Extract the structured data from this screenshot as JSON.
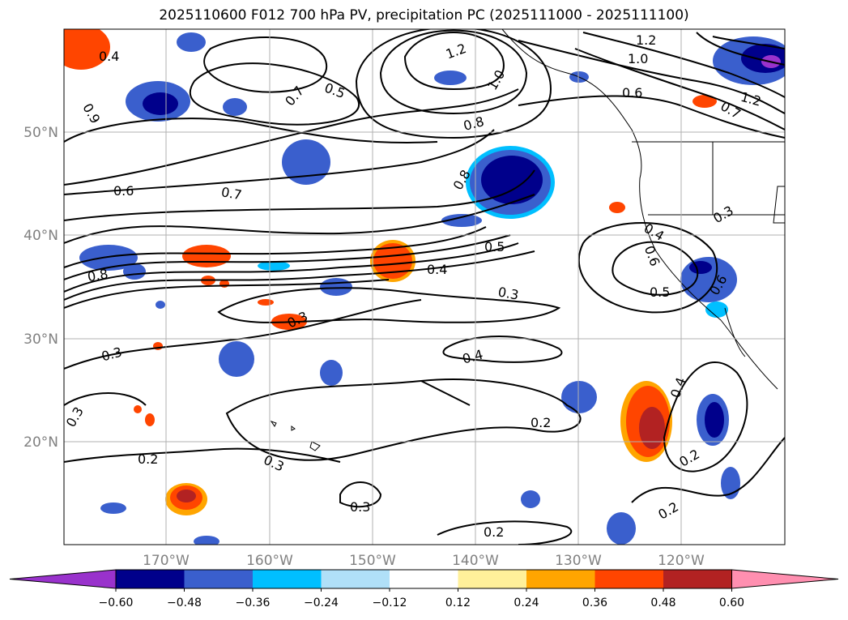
{
  "title": "2025110600 F012 700 hPa PV, precipitation PC (2025111000 - 2025111100)",
  "lat_labels": [
    "50°N",
    "40°N",
    "30°N",
    "20°N"
  ],
  "lon_labels": [
    "170°W",
    "160°W",
    "150°W",
    "140°W",
    "130°W",
    "120°W"
  ],
  "contour_labels": [
    "0.4",
    "0.9",
    "0.7",
    "0.5",
    "1.2",
    "1.0",
    "0.6",
    "0.7",
    "1.2",
    "1.2",
    "1.0",
    "0.8",
    "0.8",
    "0.6",
    "0.7",
    "0.5",
    "0.4",
    "0.3",
    "0.8",
    "0.3",
    "0.5",
    "0.3",
    "0.4",
    "0.4",
    "0.6",
    "0.6",
    "0.3",
    "0.3",
    "0.4",
    "0.2",
    "0.2",
    "0.3",
    "0.3",
    "0.2",
    "0.2",
    "0.2"
  ],
  "colorbar": {
    "ticks": [
      "−0.60",
      "−0.48",
      "−0.36",
      "−0.24",
      "−0.12",
      "0.12",
      "0.24",
      "0.36",
      "0.48",
      "0.60"
    ],
    "colors": [
      "#9932cc",
      "#00008b",
      "#3a5fcd",
      "#00bfff",
      "#b0e0f8",
      "#ffffff",
      "#fff09a",
      "#ffa500",
      "#ff4500",
      "#b22222",
      "#ff8fb0"
    ]
  },
  "colors": {
    "contour": "#000000",
    "gridline": "#b0b0b0",
    "coastline": "#000000"
  }
}
